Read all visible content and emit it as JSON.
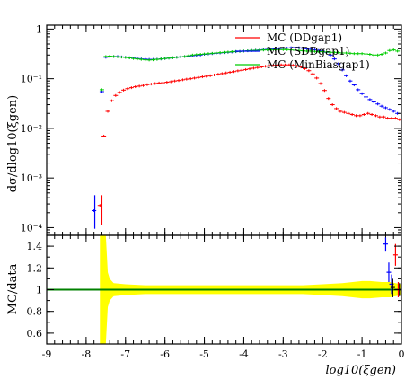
{
  "chart_data": [
    {
      "type": "scatter",
      "panel": "main",
      "ylabel": "dσ/dlog10(ξgen)",
      "yscale": "log",
      "xlim": [
        -9,
        0
      ],
      "ylim": [
        7e-05,
        1.2
      ],
      "ytick_labels": [
        "10⁻⁴",
        "10⁻³",
        "10⁻²",
        "10⁻¹",
        "1"
      ],
      "ytick_values": [
        0.0001,
        0.001,
        0.01,
        0.1,
        1
      ],
      "legend_position": "top-right",
      "series": [
        {
          "name": "MC (DDgap1)",
          "color": "#ff0000",
          "x": [
            -7.65,
            -7.55,
            -7.45,
            -7.35,
            -7.25,
            -7.15,
            -7.05,
            -6.95,
            -6.85,
            -6.75,
            -6.65,
            -6.55,
            -6.45,
            -6.35,
            -6.25,
            -6.15,
            -6.05,
            -5.95,
            -5.85,
            -5.75,
            -5.65,
            -5.55,
            -5.45,
            -5.35,
            -5.25,
            -5.15,
            -5.05,
            -4.95,
            -4.85,
            -4.75,
            -4.65,
            -4.55,
            -4.45,
            -4.35,
            -4.25,
            -4.15,
            -4.05,
            -3.95,
            -3.85,
            -3.75,
            -3.65,
            -3.55,
            -3.45,
            -3.35,
            -3.25,
            -3.15,
            -3.05,
            -2.95,
            -2.85,
            -2.75,
            -2.65,
            -2.55,
            -2.45,
            -2.35,
            -2.25,
            -2.15,
            -2.05,
            -1.95,
            -1.85,
            -1.75,
            -1.65,
            -1.55,
            -1.45,
            -1.35,
            -1.25,
            -1.15,
            -1.05,
            -0.95,
            -0.85,
            -0.75,
            -0.65,
            -0.55,
            -0.45,
            -0.35,
            -0.25,
            -0.15,
            -0.05
          ],
          "y": [
            0.00028,
            0.007,
            0.022,
            0.036,
            0.046,
            0.053,
            0.059,
            0.063,
            0.066,
            0.069,
            0.071,
            0.073,
            0.076,
            0.078,
            0.08,
            0.082,
            0.083,
            0.085,
            0.087,
            0.09,
            0.092,
            0.095,
            0.098,
            0.1,
            0.103,
            0.106,
            0.109,
            0.112,
            0.115,
            0.119,
            0.123,
            0.127,
            0.131,
            0.135,
            0.139,
            0.144,
            0.148,
            0.153,
            0.158,
            0.163,
            0.168,
            0.173,
            0.178,
            0.183,
            0.186,
            0.188,
            0.19,
            0.19,
            0.19,
            0.186,
            0.18,
            0.172,
            0.16,
            0.145,
            0.125,
            0.103,
            0.08,
            0.058,
            0.04,
            0.03,
            0.025,
            0.022,
            0.021,
            0.02,
            0.019,
            0.018,
            0.018,
            0.019,
            0.02,
            0.019,
            0.018,
            0.017,
            0.017,
            0.016,
            0.016,
            0.016,
            0.015
          ]
        },
        {
          "name": "MC (SDDgap1)",
          "color": "#0000ff",
          "x": [
            -7.8,
            -7.6,
            -7.5,
            -7.4,
            -7.3,
            -7.2,
            -7.1,
            -7.0,
            -6.9,
            -6.8,
            -6.7,
            -6.6,
            -6.5,
            -6.4,
            -6.3,
            -6.2,
            -6.1,
            -6.0,
            -5.9,
            -5.8,
            -5.7,
            -5.6,
            -5.5,
            -5.4,
            -5.3,
            -5.2,
            -5.1,
            -5.0,
            -4.9,
            -4.8,
            -4.7,
            -4.6,
            -4.5,
            -4.4,
            -4.3,
            -4.2,
            -4.1,
            -4.0,
            -3.9,
            -3.8,
            -3.7,
            -3.6,
            -3.5,
            -3.4,
            -3.3,
            -3.2,
            -3.1,
            -3.0,
            -2.9,
            -2.8,
            -2.7,
            -2.6,
            -2.5,
            -2.4,
            -2.3,
            -2.2,
            -2.1,
            -2.0,
            -1.9,
            -1.8,
            -1.7,
            -1.6,
            -1.5,
            -1.4,
            -1.3,
            -1.2,
            -1.1,
            -1.0,
            -0.9,
            -0.8,
            -0.7,
            -0.6,
            -0.5,
            -0.4,
            -0.3,
            -0.2,
            -0.1
          ],
          "y": [
            0.00022,
            0.055,
            0.27,
            0.28,
            0.28,
            0.28,
            0.275,
            0.27,
            0.265,
            0.26,
            0.255,
            0.25,
            0.248,
            0.245,
            0.245,
            0.247,
            0.25,
            0.255,
            0.26,
            0.265,
            0.27,
            0.275,
            0.28,
            0.285,
            0.29,
            0.295,
            0.3,
            0.31,
            0.315,
            0.32,
            0.325,
            0.33,
            0.335,
            0.34,
            0.345,
            0.35,
            0.355,
            0.36,
            0.365,
            0.37,
            0.375,
            0.38,
            0.385,
            0.39,
            0.395,
            0.4,
            0.405,
            0.41,
            0.415,
            0.42,
            0.425,
            0.42,
            0.41,
            0.4,
            0.39,
            0.38,
            0.37,
            0.36,
            0.34,
            0.3,
            0.25,
            0.2,
            0.15,
            0.115,
            0.09,
            0.075,
            0.06,
            0.05,
            0.043,
            0.038,
            0.034,
            0.031,
            0.028,
            0.026,
            0.024,
            0.022,
            0.02
          ]
        },
        {
          "name": "MC (MinBiasgap1)",
          "color": "#00cc00",
          "x": [
            -7.6,
            -7.5,
            -7.4,
            -7.3,
            -7.2,
            -7.1,
            -7.0,
            -6.9,
            -6.8,
            -6.7,
            -6.6,
            -6.5,
            -6.4,
            -6.3,
            -6.2,
            -6.1,
            -6.0,
            -5.9,
            -5.8,
            -5.7,
            -5.6,
            -5.5,
            -5.4,
            -5.3,
            -5.2,
            -5.1,
            -5.0,
            -4.9,
            -4.8,
            -4.7,
            -4.6,
            -4.5,
            -4.4,
            -4.3,
            -4.2,
            -4.1,
            -4.0,
            -3.9,
            -3.8,
            -3.7,
            -3.6,
            -3.5,
            -3.4,
            -3.3,
            -3.2,
            -3.1,
            -3.0,
            -2.9,
            -2.8,
            -2.7,
            -2.6,
            -2.5,
            -2.4,
            -2.3,
            -2.2,
            -2.1,
            -2.0,
            -1.9,
            -1.8,
            -1.7,
            -1.6,
            -1.5,
            -1.4,
            -1.3,
            -1.2,
            -1.1,
            -1.0,
            -0.9,
            -0.8,
            -0.7,
            -0.6,
            -0.5,
            -0.4,
            -0.3,
            -0.2,
            -0.1
          ],
          "y": [
            0.06,
            0.28,
            0.285,
            0.28,
            0.275,
            0.272,
            0.268,
            0.262,
            0.255,
            0.25,
            0.245,
            0.24,
            0.238,
            0.24,
            0.245,
            0.25,
            0.255,
            0.26,
            0.265,
            0.27,
            0.275,
            0.28,
            0.29,
            0.3,
            0.305,
            0.31,
            0.315,
            0.32,
            0.325,
            0.33,
            0.335,
            0.34,
            0.345,
            0.35,
            0.355,
            0.355,
            0.36,
            0.365,
            0.37,
            0.372,
            0.375,
            0.378,
            0.38,
            0.38,
            0.382,
            0.385,
            0.385,
            0.385,
            0.38,
            0.375,
            0.37,
            0.365,
            0.36,
            0.36,
            0.355,
            0.35,
            0.35,
            0.345,
            0.34,
            0.34,
            0.335,
            0.33,
            0.33,
            0.325,
            0.32,
            0.32,
            0.32,
            0.315,
            0.31,
            0.3,
            0.3,
            0.31,
            0.33,
            0.37,
            0.38,
            0.36
          ]
        }
      ],
      "error_bars": [
        {
          "series": "MC (SDDgap1)",
          "x": -7.78,
          "y": 0.00022,
          "ylow": 9.5e-05,
          "yhigh": 0.00045
        },
        {
          "series": "MC (DDgap1)",
          "x": -7.6,
          "y": 0.00028,
          "ylow": 0.000115,
          "yhigh": 0.00045
        }
      ]
    },
    {
      "type": "scatter",
      "panel": "ratio",
      "xlabel": "log10(ξgen)",
      "ylabel": "MC/data",
      "xlim": [
        -9,
        0
      ],
      "ylim": [
        0.5,
        1.5
      ],
      "xtick_labels": [
        "-9",
        "-8",
        "-7",
        "-6",
        "-5",
        "-4",
        "-3",
        "-2",
        "-1",
        "0"
      ],
      "xtick_values": [
        -9,
        -8,
        -7,
        -6,
        -5,
        -4,
        -3,
        -2,
        -1,
        0
      ],
      "ytick_labels": [
        "0.6",
        "0.8",
        "1",
        "1.2",
        "1.4"
      ],
      "ytick_values": [
        0.6,
        0.8,
        1.0,
        1.2,
        1.4
      ],
      "reference_line": {
        "y": 1.0,
        "color": "#008000"
      },
      "uncertainty_band": {
        "color": "#ffff00",
        "x": [
          -7.65,
          -7.5,
          -7.45,
          -7.4,
          -7.3,
          -7.0,
          -6.5,
          -6.0,
          -5.0,
          -4.0,
          -3.0,
          -2.5,
          -2.0,
          -1.5,
          -1.0,
          -0.8,
          -0.5,
          -0.3,
          0.0
        ],
        "low": [
          0.5,
          0.5,
          0.84,
          0.9,
          0.94,
          0.95,
          0.96,
          0.96,
          0.96,
          0.96,
          0.96,
          0.96,
          0.95,
          0.94,
          0.92,
          0.92,
          0.93,
          0.93,
          0.95
        ],
        "high": [
          1.5,
          1.5,
          1.16,
          1.1,
          1.06,
          1.05,
          1.04,
          1.04,
          1.04,
          1.04,
          1.04,
          1.04,
          1.05,
          1.06,
          1.08,
          1.08,
          1.07,
          1.07,
          1.05
        ]
      },
      "points": [
        {
          "color": "#0000ff",
          "x": -0.4,
          "y": 1.42,
          "ylow": 1.35,
          "yhigh": 1.48
        },
        {
          "color": "#0000ff",
          "x": -0.32,
          "y": 1.16,
          "ylow": 1.07,
          "yhigh": 1.25
        },
        {
          "color": "#0000ff",
          "x": -0.25,
          "y": 1.05,
          "ylow": 0.96,
          "yhigh": 1.14
        },
        {
          "color": "#000000",
          "x": -0.22,
          "y": 1.02,
          "ylow": 0.93,
          "yhigh": 1.1
        },
        {
          "color": "#ff0000",
          "x": -0.15,
          "y": 1.32,
          "ylow": 1.22,
          "yhigh": 1.42
        },
        {
          "color": "#ff0000",
          "x": -0.08,
          "y": 1.0,
          "ylow": 0.93,
          "yhigh": 1.07
        },
        {
          "color": "#000000",
          "x": -0.05,
          "y": 1.0,
          "ylow": 0.94,
          "yhigh": 1.06
        }
      ]
    }
  ]
}
